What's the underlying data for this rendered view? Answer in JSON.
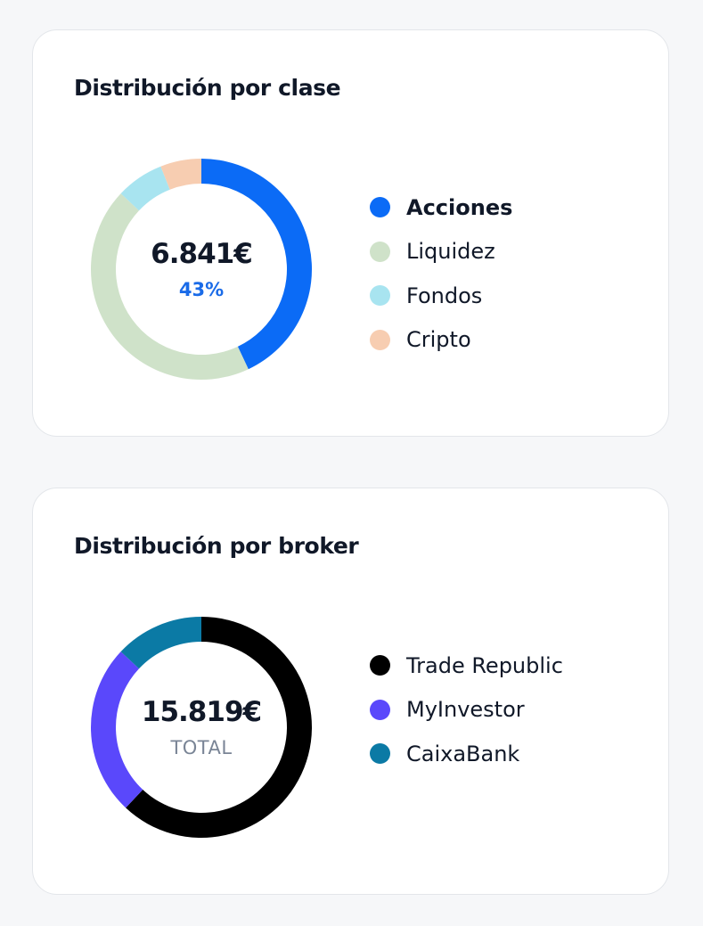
{
  "chart_data": [
    {
      "type": "pie",
      "title": "Distribución por clase",
      "center_value": "6.841€",
      "center_sub": "43%",
      "highlighted": "Acciones",
      "categories": [
        "Acciones",
        "Liquidez",
        "Fondos",
        "Cripto"
      ],
      "values": [
        43,
        44,
        7,
        6
      ],
      "colors": [
        "#0b6bf6",
        "#cfe2c9",
        "#a8e4f0",
        "#f7cdb1"
      ],
      "legend_position": "right"
    },
    {
      "type": "pie",
      "title": "Distribución por broker",
      "center_value": "15.819€",
      "center_sub": "TOTAL",
      "categories": [
        "Trade Republic",
        "MyInvestor",
        "CaixaBank"
      ],
      "values": [
        62,
        25,
        13
      ],
      "colors": [
        "#000000",
        "#5a48fb",
        "#0b7aa5"
      ],
      "legend_position": "right"
    }
  ]
}
